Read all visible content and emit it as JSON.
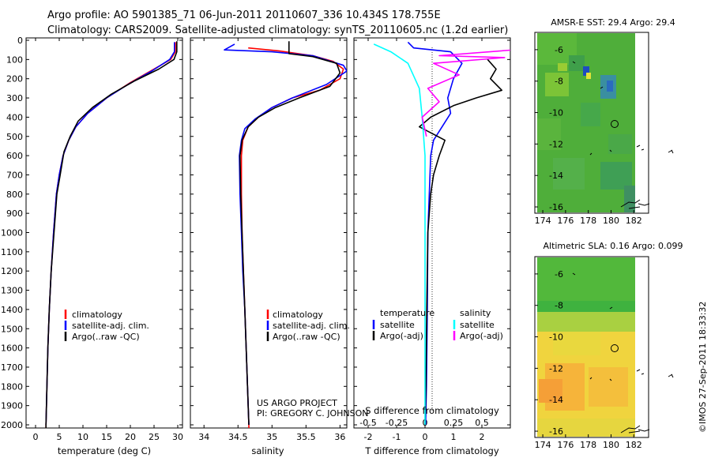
{
  "header": {
    "line1": "Argo profile: AO 5901385_71 06-Jun-2011 20110607_336 10.434S 178.755E",
    "line2": "Climatology: CARS2009. Satellite-adjusted climatology: synTS_20110605.nc (1.2d earlier)"
  },
  "colors": {
    "climatology": "#ff0000",
    "satellite": "#0000ff",
    "argo": "#000000",
    "sal_satellite": "#00ffff",
    "sal_argo": "#ff00ff",
    "sst_map_green": "#4fae3a",
    "sla_map_yellow": "#f4d53c"
  },
  "depth_axis": {
    "ticks": [
      "0",
      "100",
      "200",
      "300",
      "400",
      "500",
      "600",
      "700",
      "800",
      "900",
      "1000",
      "1100",
      "1200",
      "1300",
      "1400",
      "1500",
      "1600",
      "1700",
      "1800",
      "1900",
      "2000"
    ],
    "range": [
      0,
      2060
    ]
  },
  "chart_data": [
    {
      "type": "line",
      "panel": "temperature",
      "xlabel": "temperature (deg C)",
      "xticks": [
        "0",
        "5",
        "10",
        "15",
        "20",
        "25",
        "30"
      ],
      "xlim": [
        -2,
        31
      ],
      "ylim": [
        0,
        2060
      ],
      "legend_placement": "bottom-left",
      "legend": [
        "climatology",
        "satellite-adj. clim.",
        "Argo(..raw -QC)"
      ],
      "series": [
        {
          "name": "climatology",
          "color": "#ff0000",
          "points": [
            [
              29.5,
              10
            ],
            [
              29.5,
              60
            ],
            [
              28.5,
              100
            ],
            [
              25,
              150
            ],
            [
              20,
              220
            ],
            [
              15,
              300
            ],
            [
              11,
              380
            ],
            [
              8.5,
              450
            ],
            [
              7,
              520
            ],
            [
              5.8,
              600
            ],
            [
              5,
              700
            ],
            [
              4.4,
              800
            ],
            [
              3.8,
              1000
            ],
            [
              3.3,
              1200
            ],
            [
              2.9,
              1400
            ],
            [
              2.6,
              1600
            ],
            [
              2.4,
              1800
            ],
            [
              2.2,
              2000
            ],
            [
              2.2,
              2060
            ]
          ]
        },
        {
          "name": "satellite-adj. clim.",
          "color": "#0000ff",
          "points": [
            [
              29.3,
              10
            ],
            [
              29.3,
              60
            ],
            [
              28.3,
              100
            ],
            [
              24.5,
              160
            ],
            [
              19.5,
              230
            ],
            [
              15,
              300
            ],
            [
              11,
              380
            ],
            [
              8.5,
              450
            ],
            [
              7,
              520
            ],
            [
              5.8,
              600
            ],
            [
              5,
              700
            ],
            [
              4.4,
              800
            ],
            [
              3.8,
              1000
            ],
            [
              3.3,
              1200
            ],
            [
              2.9,
              1400
            ],
            [
              2.6,
              1600
            ],
            [
              2.4,
              1800
            ],
            [
              2.2,
              2000
            ]
          ]
        },
        {
          "name": "Argo(..raw -QC)",
          "color": "#000000",
          "points": [
            [
              29.8,
              5
            ],
            [
              29.8,
              60
            ],
            [
              29.2,
              100
            ],
            [
              26,
              150
            ],
            [
              21,
              210
            ],
            [
              16,
              280
            ],
            [
              12,
              350
            ],
            [
              9,
              420
            ],
            [
              7.3,
              500
            ],
            [
              6,
              580
            ],
            [
              5.2,
              700
            ],
            [
              4.5,
              800
            ],
            [
              3.9,
              1000
            ],
            [
              3.3,
              1200
            ],
            [
              2.9,
              1400
            ],
            [
              2.6,
              1600
            ],
            [
              2.4,
              1800
            ],
            [
              2.2,
              2000
            ],
            [
              2.2,
              2040
            ]
          ]
        }
      ]
    },
    {
      "type": "line",
      "panel": "salinity",
      "xlabel": "salinity",
      "xticks": [
        "34",
        "34.5",
        "35",
        "35.5",
        "36"
      ],
      "xlim": [
        33.8,
        36.1
      ],
      "ylim": [
        0,
        2060
      ],
      "legend_placement": "bottom-right",
      "legend": [
        "climatology",
        "satellite-adj. clim.",
        "Argo(..raw -QC)"
      ],
      "annotations": [
        "US ARGO PROJECT",
        "PI: GREGORY C. JOHNSON"
      ],
      "series": [
        {
          "name": "climatology",
          "color": "#ff0000",
          "points": [
            [
              34.65,
              40
            ],
            [
              35.1,
              55
            ],
            [
              35.6,
              80
            ],
            [
              35.9,
              110
            ],
            [
              36.05,
              150
            ],
            [
              36.0,
              200
            ],
            [
              35.7,
              260
            ],
            [
              35.3,
              300
            ],
            [
              35.0,
              350
            ],
            [
              34.8,
              400
            ],
            [
              34.65,
              450
            ],
            [
              34.57,
              520
            ],
            [
              34.55,
              600
            ],
            [
              34.55,
              800
            ],
            [
              34.56,
              1000
            ],
            [
              34.58,
              1200
            ],
            [
              34.6,
              1400
            ],
            [
              34.62,
              1600
            ],
            [
              34.64,
              1800
            ],
            [
              34.66,
              2000
            ],
            [
              34.66,
              2060
            ]
          ]
        },
        {
          "name": "satellite-adj. clim.",
          "color": "#0000ff",
          "points": [
            [
              34.45,
              20
            ],
            [
              34.3,
              50
            ],
            [
              35.0,
              60
            ],
            [
              35.6,
              80
            ],
            [
              36.05,
              130
            ],
            [
              36.1,
              160
            ],
            [
              35.8,
              230
            ],
            [
              35.3,
              300
            ],
            [
              35.0,
              350
            ],
            [
              34.75,
              410
            ],
            [
              34.6,
              460
            ],
            [
              34.55,
              520
            ],
            [
              34.52,
              600
            ],
            [
              34.53,
              800
            ],
            [
              34.55,
              1000
            ],
            [
              34.57,
              1200
            ],
            [
              34.6,
              1400
            ],
            [
              34.62,
              1600
            ],
            [
              34.64,
              1800
            ],
            [
              34.66,
              2000
            ]
          ]
        },
        {
          "name": "Argo(..raw -QC)",
          "color": "#000000",
          "points": [
            [
              35.25,
              5
            ],
            [
              35.25,
              70
            ],
            [
              35.6,
              85
            ],
            [
              35.95,
              120
            ],
            [
              36.0,
              170
            ],
            [
              35.85,
              240
            ],
            [
              35.4,
              300
            ],
            [
              35.05,
              350
            ],
            [
              34.8,
              400
            ],
            [
              34.65,
              450
            ],
            [
              34.56,
              520
            ],
            [
              34.53,
              600
            ],
            [
              34.54,
              800
            ],
            [
              34.56,
              1000
            ],
            [
              34.58,
              1200
            ],
            [
              34.6,
              1400
            ],
            [
              34.62,
              1600
            ],
            [
              34.64,
              1800
            ],
            [
              34.66,
              2000
            ]
          ]
        }
      ]
    },
    {
      "type": "line",
      "panel": "difference",
      "xlabel": "T difference from climatology",
      "xlabel_top": "S difference from climatology",
      "xticks": [
        "-2",
        "-1",
        "0",
        "1",
        "2"
      ],
      "xticks_salinity": [
        "-0.5",
        "-0.25",
        "0",
        "0.25",
        "0.5"
      ],
      "xlim": [
        -2.5,
        3
      ],
      "ylim": [
        0,
        2060
      ],
      "legend_placement": "bottom",
      "legend": {
        "temperature_title": "temperature",
        "salinity_title": "salinity",
        "t_satellite": "satellite",
        "t_argo": "Argo(-adj)",
        "s_satellite": "satellite",
        "s_argo": "Argo(-adj)"
      },
      "series": [
        {
          "name": "temperature satellite",
          "color": "#0000ff",
          "points": [
            [
              -0.6,
              10
            ],
            [
              -0.4,
              40
            ],
            [
              0.9,
              60
            ],
            [
              1.3,
              120
            ],
            [
              1.0,
              200
            ],
            [
              0.8,
              300
            ],
            [
              0.9,
              380
            ],
            [
              0.6,
              450
            ],
            [
              0.3,
              520
            ],
            [
              0.2,
              600
            ],
            [
              0.15,
              800
            ],
            [
              0.1,
              1000
            ],
            [
              0.08,
              1400
            ],
            [
              0.05,
              1800
            ],
            [
              0.02,
              2000
            ]
          ]
        },
        {
          "name": "temperature Argo(-adj)",
          "color": "#000000",
          "points": [
            [
              2.2,
              100
            ],
            [
              2.5,
              150
            ],
            [
              2.3,
              200
            ],
            [
              2.7,
              260
            ],
            [
              1.8,
              300
            ],
            [
              1.0,
              340
            ],
            [
              0.2,
              400
            ],
            [
              -0.2,
              450
            ],
            [
              0.7,
              520
            ],
            [
              0.5,
              600
            ],
            [
              0.3,
              700
            ],
            [
              0.2,
              800
            ],
            [
              0.1,
              1000
            ],
            [
              0.06,
              1400
            ],
            [
              0.03,
              1800
            ],
            [
              0.0,
              2000
            ]
          ]
        },
        {
          "name": "salinity satellite",
          "color": "#00ffff",
          "points": [
            [
              -1.8,
              20
            ],
            [
              -1.2,
              60
            ],
            [
              -0.6,
              120
            ],
            [
              -0.2,
              250
            ],
            [
              -0.1,
              400
            ],
            [
              0.0,
              600
            ],
            [
              0.0,
              1000
            ],
            [
              0.0,
              1500
            ],
            [
              0.0,
              2000
            ]
          ]
        },
        {
          "name": "salinity Argo(-adj)",
          "color": "#ff00ff",
          "points": [
            [
              4.0,
              40
            ],
            [
              0.5,
              80
            ],
            [
              2.8,
              90
            ],
            [
              0.3,
              120
            ],
            [
              1.2,
              180
            ],
            [
              0.1,
              250
            ],
            [
              0.5,
              320
            ],
            [
              -0.1,
              400
            ],
            [
              0.05,
              500
            ]
          ]
        }
      ]
    }
  ],
  "maps": {
    "xticks": [
      "174",
      "176",
      "178",
      "180",
      "182"
    ],
    "yticks": [
      "-6",
      "-8",
      "-10",
      "-12",
      "-14",
      "-16"
    ],
    "sst": {
      "title": "AMSR-E SST: 29.4 Argo: 29.4"
    },
    "sla": {
      "title": "Altimetric SLA: 0.16 Argo: 0.099"
    }
  },
  "stamp": "©IMOS 27-Sep-2011 18:33:32"
}
